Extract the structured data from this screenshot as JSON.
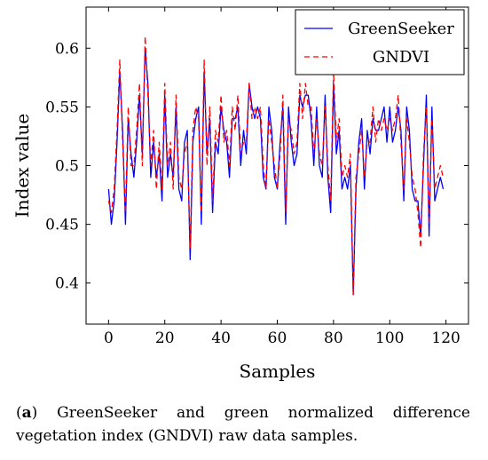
{
  "caption": {
    "label": "a",
    "text": "GreenSeeker and green normalized difference vegetation index (GNDVI) raw data samples."
  },
  "colors": {
    "greenseeker": "#0000ff",
    "gndvi": "#ff0000",
    "axis": "#000000"
  },
  "chart_data": {
    "type": "line",
    "xlabel": "Samples",
    "ylabel": "Index value",
    "xlim": [
      -8,
      128
    ],
    "ylim": [
      0.365,
      0.635
    ],
    "xticks": [
      0,
      20,
      40,
      60,
      80,
      100,
      120
    ],
    "yticks": [
      0.4,
      0.45,
      0.5,
      0.55,
      0.6
    ],
    "ytick_labels": [
      "0.4",
      "0.45",
      "0.5",
      "0.55",
      "0.6"
    ],
    "grid": false,
    "legend": "top-right",
    "series": [
      {
        "name": "GreenSeeker",
        "style": "solid",
        "x": [
          0,
          1,
          2,
          3,
          4,
          5,
          6,
          7,
          8,
          9,
          10,
          11,
          12,
          13,
          14,
          15,
          16,
          17,
          18,
          19,
          20,
          21,
          22,
          23,
          24,
          25,
          26,
          27,
          28,
          29,
          30,
          31,
          32,
          33,
          34,
          35,
          36,
          37,
          38,
          39,
          40,
          41,
          42,
          43,
          44,
          45,
          46,
          47,
          48,
          49,
          50,
          51,
          52,
          53,
          54,
          55,
          56,
          57,
          58,
          59,
          60,
          61,
          62,
          63,
          64,
          65,
          66,
          67,
          68,
          69,
          70,
          71,
          72,
          73,
          74,
          75,
          76,
          77,
          78,
          79,
          80,
          81,
          82,
          83,
          84,
          85,
          86,
          87,
          88,
          89,
          90,
          91,
          92,
          93,
          94,
          95,
          96,
          97,
          98,
          99,
          100,
          101,
          102,
          103,
          104,
          105,
          106,
          107,
          108,
          109,
          110,
          111,
          112,
          113,
          114,
          115,
          116,
          117,
          118,
          119
        ],
        "values": [
          0.48,
          0.45,
          0.47,
          0.52,
          0.58,
          0.53,
          0.45,
          0.54,
          0.51,
          0.49,
          0.52,
          0.56,
          0.51,
          0.6,
          0.57,
          0.49,
          0.52,
          0.49,
          0.51,
          0.47,
          0.56,
          0.49,
          0.51,
          0.49,
          0.55,
          0.48,
          0.47,
          0.52,
          0.53,
          0.42,
          0.52,
          0.54,
          0.55,
          0.45,
          0.58,
          0.51,
          0.54,
          0.46,
          0.52,
          0.51,
          0.55,
          0.53,
          0.52,
          0.49,
          0.54,
          0.54,
          0.55,
          0.5,
          0.53,
          0.51,
          0.57,
          0.55,
          0.54,
          0.55,
          0.54,
          0.49,
          0.48,
          0.55,
          0.53,
          0.49,
          0.48,
          0.52,
          0.55,
          0.45,
          0.55,
          0.52,
          0.5,
          0.51,
          0.56,
          0.55,
          0.56,
          0.56,
          0.54,
          0.5,
          0.55,
          0.5,
          0.49,
          0.56,
          0.49,
          0.46,
          0.57,
          0.51,
          0.53,
          0.48,
          0.49,
          0.48,
          0.5,
          0.39,
          0.48,
          0.52,
          0.54,
          0.48,
          0.53,
          0.51,
          0.54,
          0.53,
          0.53,
          0.54,
          0.55,
          0.52,
          0.55,
          0.52,
          0.53,
          0.55,
          0.53,
          0.47,
          0.55,
          0.53,
          0.48,
          0.47,
          0.47,
          0.44,
          0.5,
          0.56,
          0.44,
          0.55,
          0.47,
          0.48,
          0.49,
          0.48
        ]
      },
      {
        "name": "GNDVI",
        "style": "dashed",
        "x": [
          0,
          1,
          2,
          3,
          4,
          5,
          6,
          7,
          8,
          9,
          10,
          11,
          12,
          13,
          14,
          15,
          16,
          17,
          18,
          19,
          20,
          21,
          22,
          23,
          24,
          25,
          26,
          27,
          28,
          29,
          30,
          31,
          32,
          33,
          34,
          35,
          36,
          37,
          38,
          39,
          40,
          41,
          42,
          43,
          44,
          45,
          46,
          47,
          48,
          49,
          50,
          51,
          52,
          53,
          54,
          55,
          56,
          57,
          58,
          59,
          60,
          61,
          62,
          63,
          64,
          65,
          66,
          67,
          68,
          69,
          70,
          71,
          72,
          73,
          74,
          75,
          76,
          77,
          78,
          79,
          80,
          81,
          82,
          83,
          84,
          85,
          86,
          87,
          88,
          89,
          90,
          91,
          92,
          93,
          94,
          95,
          96,
          97,
          98,
          99,
          100,
          101,
          102,
          103,
          104,
          105,
          106,
          107,
          108,
          109,
          110,
          111,
          112,
          113,
          114,
          115,
          116,
          117,
          118,
          119
        ],
        "values": [
          0.47,
          0.46,
          0.48,
          0.53,
          0.59,
          0.52,
          0.46,
          0.55,
          0.5,
          0.5,
          0.53,
          0.57,
          0.5,
          0.61,
          0.56,
          0.5,
          0.53,
          0.48,
          0.52,
          0.48,
          0.57,
          0.5,
          0.52,
          0.48,
          0.56,
          0.49,
          0.48,
          0.51,
          0.52,
          0.43,
          0.53,
          0.55,
          0.54,
          0.46,
          0.59,
          0.5,
          0.55,
          0.47,
          0.53,
          0.52,
          0.56,
          0.52,
          0.53,
          0.5,
          0.55,
          0.53,
          0.56,
          0.51,
          0.52,
          0.52,
          0.57,
          0.54,
          0.55,
          0.54,
          0.55,
          0.5,
          0.48,
          0.54,
          0.52,
          0.5,
          0.48,
          0.51,
          0.56,
          0.46,
          0.54,
          0.53,
          0.51,
          0.52,
          0.57,
          0.54,
          0.57,
          0.55,
          0.55,
          0.51,
          0.54,
          0.51,
          0.5,
          0.55,
          0.5,
          0.47,
          0.58,
          0.52,
          0.54,
          0.49,
          0.5,
          0.49,
          0.51,
          0.39,
          0.49,
          0.51,
          0.53,
          0.49,
          0.52,
          0.52,
          0.55,
          0.52,
          0.54,
          0.53,
          0.54,
          0.53,
          0.54,
          0.53,
          0.54,
          0.56,
          0.52,
          0.48,
          0.54,
          0.52,
          0.49,
          0.48,
          0.46,
          0.43,
          0.51,
          0.55,
          0.45,
          0.54,
          0.48,
          0.49,
          0.5,
          0.49
        ]
      }
    ]
  }
}
